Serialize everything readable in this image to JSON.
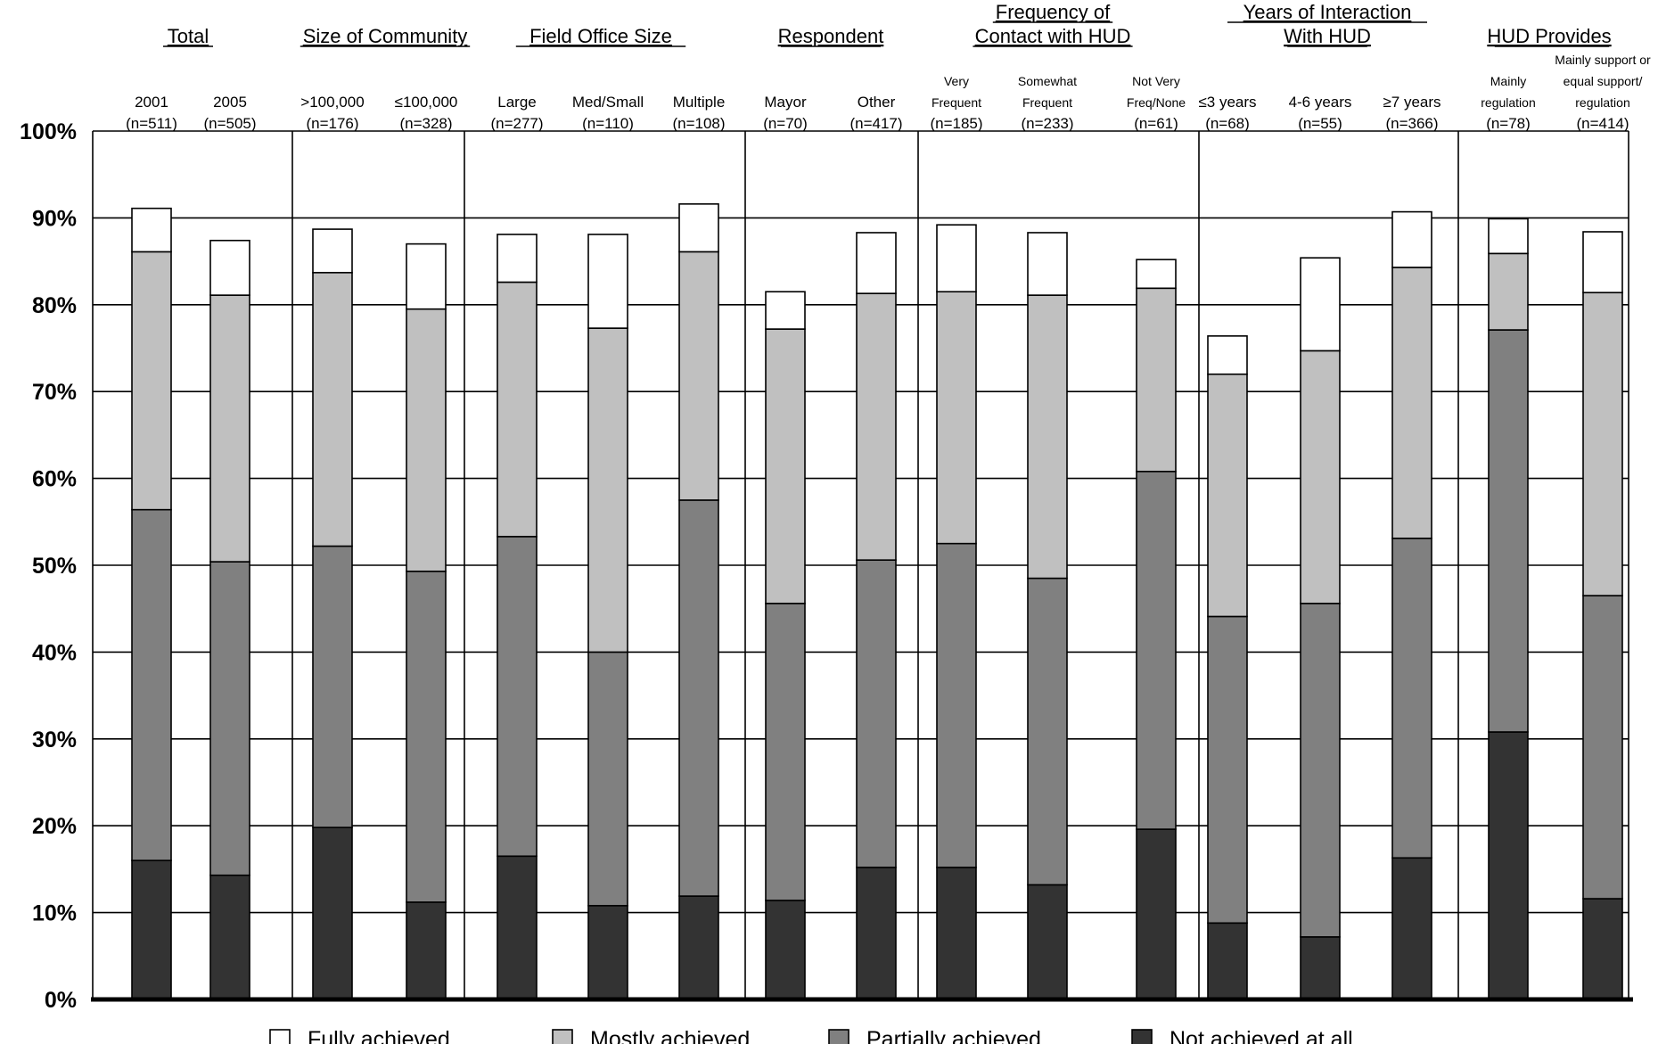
{
  "chart_data": {
    "type": "bar",
    "stacked": true,
    "y_axis": {
      "min": 0,
      "max": 100,
      "ticks": [
        0,
        10,
        20,
        30,
        40,
        50,
        60,
        70,
        80,
        90,
        100
      ],
      "tick_labels": [
        "0%",
        "10%",
        "20%",
        "30%",
        "40%",
        "50%",
        "60%",
        "70%",
        "80%",
        "90%",
        "100%"
      ],
      "grid": true
    },
    "legend": {
      "placement": "bottom",
      "items": [
        {
          "label": "Fully achieved",
          "color": "#ffffff"
        },
        {
          "label": "Mostly achieved",
          "color": "#c0c0c0"
        },
        {
          "label": "Partially achieved",
          "color": "#808080"
        },
        {
          "label": "Not achieved at all",
          "color": "#333333"
        }
      ]
    },
    "series_names": [
      "Not achieved at all",
      "Partially achieved",
      "Mostly achieved",
      "Fully achieved"
    ],
    "series_colors": [
      "#333333",
      "#808080",
      "#c0c0c0",
      "#ffffff"
    ],
    "groups": [
      {
        "title": [
          "Total"
        ],
        "bars": [
          {
            "label": [
              "2001",
              "(n=511)"
            ],
            "values": [
              16.0,
              40.4,
              29.7,
              5.0
            ]
          },
          {
            "label": [
              "2005",
              "(n=505)"
            ],
            "values": [
              14.3,
              36.1,
              30.7,
              6.3
            ]
          }
        ]
      },
      {
        "title": [
          "Size of Community"
        ],
        "bars": [
          {
            "label": [
              ">100,000",
              "(n=176)"
            ],
            "values": [
              19.8,
              32.4,
              31.5,
              5.0
            ]
          },
          {
            "label": [
              "≤100,000",
              "(n=328)"
            ],
            "values": [
              11.2,
              38.1,
              30.2,
              7.5
            ]
          }
        ]
      },
      {
        "title": [
          "Field Office Size"
        ],
        "bars": [
          {
            "label": [
              "Large",
              "(n=277)"
            ],
            "values": [
              16.5,
              36.8,
              29.3,
              5.5
            ]
          },
          {
            "label": [
              "Med/Small",
              "(n=110)"
            ],
            "values": [
              10.8,
              29.2,
              37.3,
              10.8
            ]
          },
          {
            "label": [
              "Multiple",
              "(n=108)"
            ],
            "values": [
              11.9,
              45.6,
              28.6,
              5.5
            ]
          }
        ]
      },
      {
        "title": [
          "Respondent"
        ],
        "bars": [
          {
            "label": [
              "Mayor",
              "(n=70)"
            ],
            "values": [
              11.4,
              34.2,
              31.6,
              4.3
            ]
          },
          {
            "label": [
              "Other",
              "(n=417)"
            ],
            "values": [
              15.2,
              35.4,
              30.7,
              7.0
            ]
          }
        ]
      },
      {
        "title": [
          "Frequency of",
          "Contact with HUD"
        ],
        "bars": [
          {
            "label": [
              "Very",
              "Frequent",
              "(n=185)"
            ],
            "values": [
              15.2,
              37.3,
              29.0,
              7.7
            ]
          },
          {
            "label": [
              "Somewhat",
              "Frequent",
              "(n=233)"
            ],
            "values": [
              13.2,
              35.3,
              32.6,
              7.2
            ]
          },
          {
            "label": [
              "Not Very",
              "Freq/None",
              "(n=61)"
            ],
            "values": [
              19.6,
              41.2,
              21.1,
              3.3
            ]
          }
        ]
      },
      {
        "title": [
          "Years of Interaction",
          "With HUD"
        ],
        "bars": [
          {
            "label": [
              "≤3 years",
              "(n=68)"
            ],
            "values": [
              8.8,
              35.3,
              27.9,
              4.4
            ]
          },
          {
            "label": [
              "4-6 years",
              "(n=55)"
            ],
            "values": [
              7.2,
              38.4,
              29.1,
              10.7
            ]
          },
          {
            "label": [
              "≥7 years",
              "(n=366)"
            ],
            "values": [
              16.3,
              36.8,
              31.2,
              6.4
            ]
          }
        ]
      },
      {
        "title": [
          " HUD Provides"
        ],
        "bars": [
          {
            "label": [
              "Mainly",
              "regulation",
              "(n=78)"
            ],
            "values": [
              30.8,
              46.3,
              8.8,
              4.0
            ]
          },
          {
            "label": [
              "Mainly support or",
              "equal support/",
              "regulation",
              "(n=414)"
            ],
            "values": [
              11.6,
              34.9,
              34.9,
              7.0
            ]
          }
        ]
      }
    ]
  }
}
